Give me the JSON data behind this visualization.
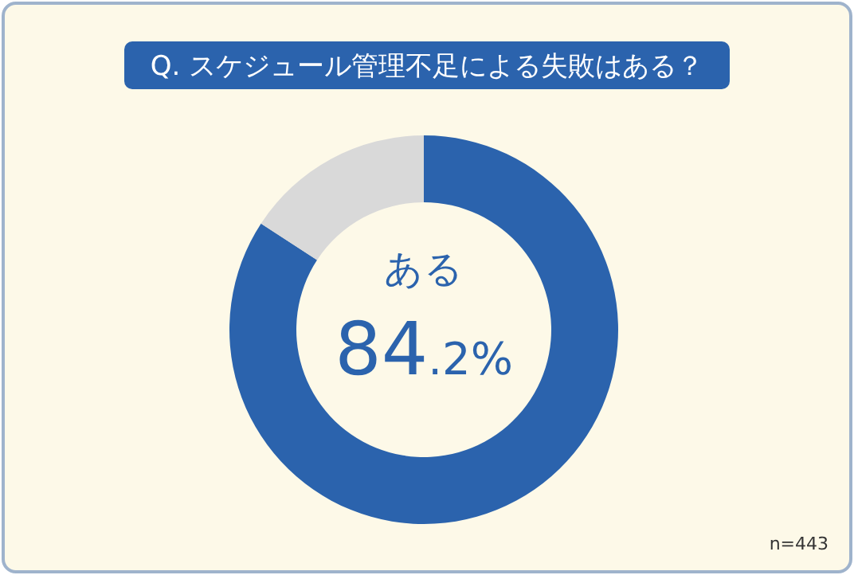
{
  "chart_data": {
    "type": "donut",
    "title": "Q. スケジュール管理不足による失敗はある？",
    "categories": [
      "ある",
      null
    ],
    "values": [
      84.2,
      15.8
    ],
    "colors": [
      "#2b63ad",
      "#d9d9d9"
    ],
    "value_labels": [
      "84.2%",
      null
    ],
    "annotations": [
      "n=443"
    ]
  }
}
